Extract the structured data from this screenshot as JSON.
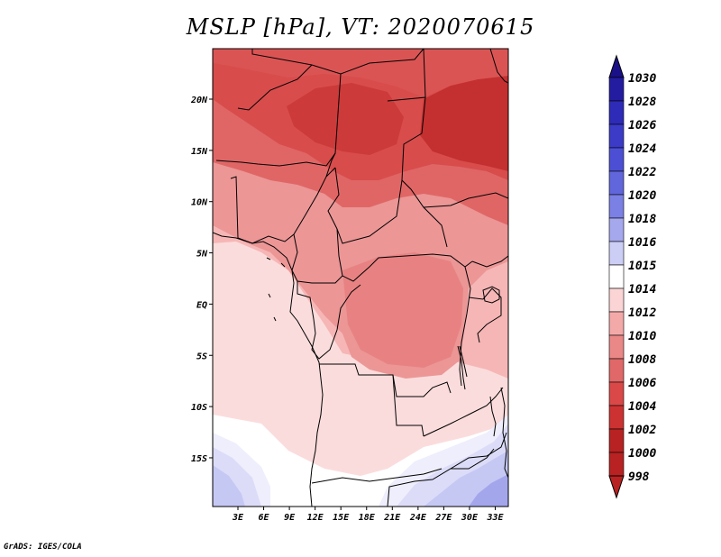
{
  "title": "MSLP [hPa], VT: 2020070615",
  "credit": "GrADS: IGES/COLA",
  "lat_labels": [
    "20N",
    "15N",
    "10N",
    "5N",
    "EQ",
    "5S",
    "10S",
    "15S"
  ],
  "lon_labels": [
    "3E",
    "6E",
    "9E",
    "12E",
    "15E",
    "18E",
    "21E",
    "24E",
    "27E",
    "30E",
    "33E"
  ],
  "colorbar": {
    "levels": [
      "1030",
      "1028",
      "1026",
      "1024",
      "1022",
      "1020",
      "1018",
      "1016",
      "1015",
      "1014",
      "1012",
      "1010",
      "1008",
      "1006",
      "1004",
      "1002",
      "1000",
      "998"
    ],
    "colors": [
      "#1a1087",
      "#241ca0",
      "#2e2bb8",
      "#3b3bc8",
      "#4c4fd4",
      "#6166dc",
      "#7b80e4",
      "#a6a8ee",
      "#cdcef6",
      "#ffffff",
      "#fbd5d5",
      "#f4a9a9",
      "#ea8888",
      "#e06868",
      "#db4848",
      "#cc3232",
      "#b82222",
      "#b82222"
    ]
  },
  "fields": {
    "palette": {
      "v1016": "#dcdcf8",
      "v1015": "#eeeefc",
      "v1014": "#ffffff",
      "v1012": "#fbdcdc",
      "v1010": "#f6b6b6",
      "v1008": "#ec9696",
      "v1007": "#e88282",
      "v1005": "#e06666",
      "v1003": "#d84c4c",
      "v1001": "#c43030",
      "blue_deep": "#a4a6ec",
      "blue_mid": "#c6c8f4"
    }
  }
}
